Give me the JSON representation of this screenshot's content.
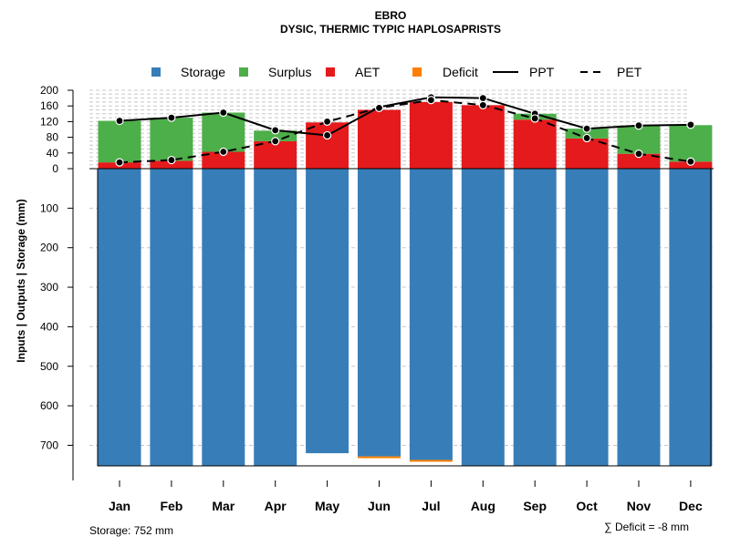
{
  "chart_data": {
    "type": "bar",
    "title": "EBRO",
    "subtitle": "DYSIC, THERMIC TYPIC HAPLOSAPRISTS",
    "ylabel": "Inputs | Outputs | Storage    (mm)",
    "upper_ticks": [
      "200",
      "160",
      "120",
      "80",
      "40",
      "0"
    ],
    "upper_tick_values": [
      200,
      160,
      120,
      80,
      40,
      0
    ],
    "lower_ticks": [
      "100",
      "200",
      "300",
      "400",
      "500",
      "600",
      "700"
    ],
    "lower_tick_values": [
      100,
      200,
      300,
      400,
      500,
      600,
      700
    ],
    "upper_ylim": [
      0,
      200
    ],
    "lower_ylim": [
      0,
      752
    ],
    "categories": [
      "Jan",
      "Feb",
      "Mar",
      "Apr",
      "May",
      "Jun",
      "Jul",
      "Aug",
      "Sep",
      "Oct",
      "Nov",
      "Dec"
    ],
    "legend": [
      {
        "label": "Storage",
        "kind": "box",
        "color": "#377eb8"
      },
      {
        "label": "Surplus",
        "kind": "box",
        "color": "#4daf4a"
      },
      {
        "label": "AET",
        "kind": "box",
        "color": "#e41a1c"
      },
      {
        "label": "Deficit",
        "kind": "box",
        "color": "#ff7f00"
      },
      {
        "label": "PPT",
        "kind": "solid",
        "color": "#000000"
      },
      {
        "label": "PET",
        "kind": "dashed",
        "color": "#000000"
      }
    ],
    "series": {
      "storage": [
        752,
        752,
        752,
        752,
        720,
        728,
        737,
        752,
        752,
        752,
        752,
        752
      ],
      "deficit": [
        0,
        0,
        0,
        0,
        0,
        5,
        3,
        0,
        0,
        0,
        0,
        0
      ],
      "aet": [
        16,
        20,
        43,
        70,
        118,
        150,
        170,
        162,
        125,
        77,
        38,
        18
      ],
      "surplus": [
        106,
        110,
        100,
        27,
        0,
        0,
        0,
        0,
        15,
        25,
        72,
        93
      ],
      "ppt": [
        122,
        130,
        143,
        98,
        85,
        157,
        182,
        180,
        140,
        102,
        110,
        112
      ],
      "pet": [
        16,
        22,
        43,
        70,
        120,
        155,
        175,
        162,
        128,
        78,
        38,
        18
      ]
    },
    "colors": {
      "storage": "#377eb8",
      "surplus": "#4daf4a",
      "aet": "#e41a1c",
      "deficit": "#ff7f00",
      "line": "#000000",
      "grid": "#c8c8c8"
    }
  },
  "footer": {
    "storage_note": "Storage: 752 mm",
    "deficit_note": "∑ Deficit = -8 mm"
  }
}
